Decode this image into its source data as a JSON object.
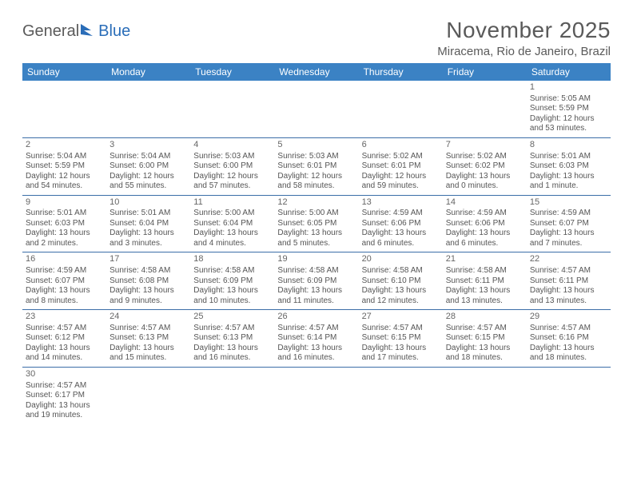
{
  "logo": {
    "general": "General",
    "blue": "Blue"
  },
  "title": "November 2025",
  "location": "Miracema, Rio de Janeiro, Brazil",
  "colors": {
    "header_bg": "#3b82c4",
    "header_text": "#ffffff",
    "rule": "#3b6ea8",
    "text": "#555555",
    "title_text": "#5a5a5a",
    "logo_blue": "#2a6db8"
  },
  "day_headers": [
    "Sunday",
    "Monday",
    "Tuesday",
    "Wednesday",
    "Thursday",
    "Friday",
    "Saturday"
  ],
  "weeks": [
    [
      null,
      null,
      null,
      null,
      null,
      null,
      {
        "n": "1",
        "sr": "Sunrise: 5:05 AM",
        "ss": "Sunset: 5:59 PM",
        "d1": "Daylight: 12 hours",
        "d2": "and 53 minutes."
      }
    ],
    [
      {
        "n": "2",
        "sr": "Sunrise: 5:04 AM",
        "ss": "Sunset: 5:59 PM",
        "d1": "Daylight: 12 hours",
        "d2": "and 54 minutes."
      },
      {
        "n": "3",
        "sr": "Sunrise: 5:04 AM",
        "ss": "Sunset: 6:00 PM",
        "d1": "Daylight: 12 hours",
        "d2": "and 55 minutes."
      },
      {
        "n": "4",
        "sr": "Sunrise: 5:03 AM",
        "ss": "Sunset: 6:00 PM",
        "d1": "Daylight: 12 hours",
        "d2": "and 57 minutes."
      },
      {
        "n": "5",
        "sr": "Sunrise: 5:03 AM",
        "ss": "Sunset: 6:01 PM",
        "d1": "Daylight: 12 hours",
        "d2": "and 58 minutes."
      },
      {
        "n": "6",
        "sr": "Sunrise: 5:02 AM",
        "ss": "Sunset: 6:01 PM",
        "d1": "Daylight: 12 hours",
        "d2": "and 59 minutes."
      },
      {
        "n": "7",
        "sr": "Sunrise: 5:02 AM",
        "ss": "Sunset: 6:02 PM",
        "d1": "Daylight: 13 hours",
        "d2": "and 0 minutes."
      },
      {
        "n": "8",
        "sr": "Sunrise: 5:01 AM",
        "ss": "Sunset: 6:03 PM",
        "d1": "Daylight: 13 hours",
        "d2": "and 1 minute."
      }
    ],
    [
      {
        "n": "9",
        "sr": "Sunrise: 5:01 AM",
        "ss": "Sunset: 6:03 PM",
        "d1": "Daylight: 13 hours",
        "d2": "and 2 minutes."
      },
      {
        "n": "10",
        "sr": "Sunrise: 5:01 AM",
        "ss": "Sunset: 6:04 PM",
        "d1": "Daylight: 13 hours",
        "d2": "and 3 minutes."
      },
      {
        "n": "11",
        "sr": "Sunrise: 5:00 AM",
        "ss": "Sunset: 6:04 PM",
        "d1": "Daylight: 13 hours",
        "d2": "and 4 minutes."
      },
      {
        "n": "12",
        "sr": "Sunrise: 5:00 AM",
        "ss": "Sunset: 6:05 PM",
        "d1": "Daylight: 13 hours",
        "d2": "and 5 minutes."
      },
      {
        "n": "13",
        "sr": "Sunrise: 4:59 AM",
        "ss": "Sunset: 6:06 PM",
        "d1": "Daylight: 13 hours",
        "d2": "and 6 minutes."
      },
      {
        "n": "14",
        "sr": "Sunrise: 4:59 AM",
        "ss": "Sunset: 6:06 PM",
        "d1": "Daylight: 13 hours",
        "d2": "and 6 minutes."
      },
      {
        "n": "15",
        "sr": "Sunrise: 4:59 AM",
        "ss": "Sunset: 6:07 PM",
        "d1": "Daylight: 13 hours",
        "d2": "and 7 minutes."
      }
    ],
    [
      {
        "n": "16",
        "sr": "Sunrise: 4:59 AM",
        "ss": "Sunset: 6:07 PM",
        "d1": "Daylight: 13 hours",
        "d2": "and 8 minutes."
      },
      {
        "n": "17",
        "sr": "Sunrise: 4:58 AM",
        "ss": "Sunset: 6:08 PM",
        "d1": "Daylight: 13 hours",
        "d2": "and 9 minutes."
      },
      {
        "n": "18",
        "sr": "Sunrise: 4:58 AM",
        "ss": "Sunset: 6:09 PM",
        "d1": "Daylight: 13 hours",
        "d2": "and 10 minutes."
      },
      {
        "n": "19",
        "sr": "Sunrise: 4:58 AM",
        "ss": "Sunset: 6:09 PM",
        "d1": "Daylight: 13 hours",
        "d2": "and 11 minutes."
      },
      {
        "n": "20",
        "sr": "Sunrise: 4:58 AM",
        "ss": "Sunset: 6:10 PM",
        "d1": "Daylight: 13 hours",
        "d2": "and 12 minutes."
      },
      {
        "n": "21",
        "sr": "Sunrise: 4:58 AM",
        "ss": "Sunset: 6:11 PM",
        "d1": "Daylight: 13 hours",
        "d2": "and 13 minutes."
      },
      {
        "n": "22",
        "sr": "Sunrise: 4:57 AM",
        "ss": "Sunset: 6:11 PM",
        "d1": "Daylight: 13 hours",
        "d2": "and 13 minutes."
      }
    ],
    [
      {
        "n": "23",
        "sr": "Sunrise: 4:57 AM",
        "ss": "Sunset: 6:12 PM",
        "d1": "Daylight: 13 hours",
        "d2": "and 14 minutes."
      },
      {
        "n": "24",
        "sr": "Sunrise: 4:57 AM",
        "ss": "Sunset: 6:13 PM",
        "d1": "Daylight: 13 hours",
        "d2": "and 15 minutes."
      },
      {
        "n": "25",
        "sr": "Sunrise: 4:57 AM",
        "ss": "Sunset: 6:13 PM",
        "d1": "Daylight: 13 hours",
        "d2": "and 16 minutes."
      },
      {
        "n": "26",
        "sr": "Sunrise: 4:57 AM",
        "ss": "Sunset: 6:14 PM",
        "d1": "Daylight: 13 hours",
        "d2": "and 16 minutes."
      },
      {
        "n": "27",
        "sr": "Sunrise: 4:57 AM",
        "ss": "Sunset: 6:15 PM",
        "d1": "Daylight: 13 hours",
        "d2": "and 17 minutes."
      },
      {
        "n": "28",
        "sr": "Sunrise: 4:57 AM",
        "ss": "Sunset: 6:15 PM",
        "d1": "Daylight: 13 hours",
        "d2": "and 18 minutes."
      },
      {
        "n": "29",
        "sr": "Sunrise: 4:57 AM",
        "ss": "Sunset: 6:16 PM",
        "d1": "Daylight: 13 hours",
        "d2": "and 18 minutes."
      }
    ],
    [
      {
        "n": "30",
        "sr": "Sunrise: 4:57 AM",
        "ss": "Sunset: 6:17 PM",
        "d1": "Daylight: 13 hours",
        "d2": "and 19 minutes."
      },
      null,
      null,
      null,
      null,
      null,
      null
    ]
  ]
}
